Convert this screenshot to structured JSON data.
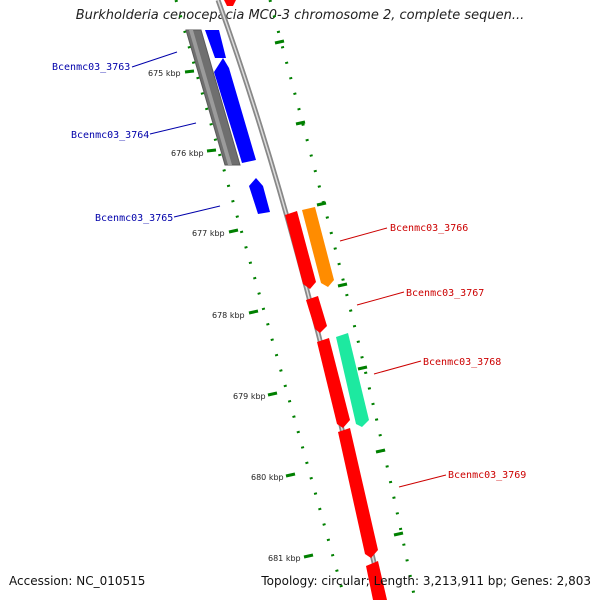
{
  "header": {
    "title": "Burkholderia cenocepacia MC0-3 chromosome 2, complete sequen..."
  },
  "footer": {
    "accession": "Accession: NC_010515",
    "summary": "Topology: circular; Length: 3,213,911 bp; Genes: 2,803"
  },
  "map": {
    "ticks": [
      {
        "label": "675 kbp"
      },
      {
        "label": "676 kbp"
      },
      {
        "label": "677 kbp"
      },
      {
        "label": "678 kbp"
      },
      {
        "label": "679 kbp"
      },
      {
        "label": "680 kbp"
      },
      {
        "label": "681 kbp"
      }
    ],
    "genes": [
      {
        "label": "Bcenmc03_3763",
        "strand": "reverse",
        "color": "#0000ff"
      },
      {
        "label": "Bcenmc03_3764",
        "strand": "reverse",
        "color": "#0000ff"
      },
      {
        "label": "Bcenmc03_3765",
        "strand": "reverse",
        "color": "#0000ff"
      },
      {
        "label": "Bcenmc03_3766",
        "strand": "forward",
        "color": "#ff0000"
      },
      {
        "label": "Bcenmc03_3767",
        "strand": "forward",
        "color": "#ff0000"
      },
      {
        "label": "Bcenmc03_3768",
        "strand": "forward",
        "color": "#ff0000"
      },
      {
        "label": "Bcenmc03_3769",
        "strand": "forward",
        "color": "#ff0000"
      }
    ],
    "colors": {
      "reverse_label": "#0000aa",
      "forward_label": "#cc0000",
      "backbone": "#888888",
      "ticks": "#007700",
      "blue_gene": "#0000ff",
      "red_gene": "#ff0000",
      "orange_gene": "#ff8c00",
      "teal_gene": "#1de9a0",
      "grey_gene": "#707070"
    }
  }
}
